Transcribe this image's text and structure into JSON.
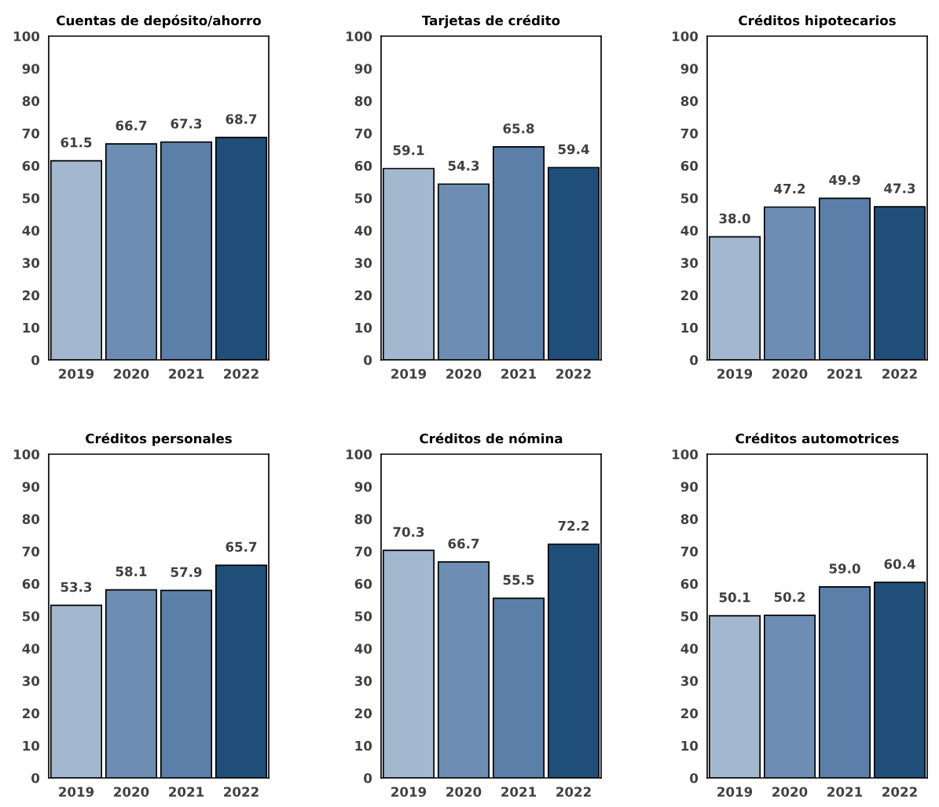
{
  "chart_data": [
    {
      "type": "bar",
      "title": "Cuentas de depósito/ahorro",
      "categories": [
        "2019",
        "2020",
        "2021",
        "2022"
      ],
      "values": [
        61.5,
        66.7,
        67.3,
        68.7
      ],
      "value_labels": [
        "61.5",
        "66.7",
        "67.3",
        "68.7"
      ],
      "colors": [
        "#a3b7cf",
        "#6d8db2",
        "#5b7fa8",
        "#1f4e79"
      ],
      "ylim": [
        0,
        100
      ],
      "yticks": [
        0,
        10,
        20,
        30,
        40,
        50,
        60,
        70,
        80,
        90,
        100
      ],
      "grid": false
    },
    {
      "type": "bar",
      "title": "Tarjetas de crédito",
      "categories": [
        "2019",
        "2020",
        "2021",
        "2022"
      ],
      "values": [
        59.1,
        54.3,
        65.8,
        59.4
      ],
      "value_labels": [
        "59.1",
        "54.3",
        "65.8",
        "59.4"
      ],
      "colors": [
        "#a3b7cf",
        "#6d8db2",
        "#5b7fa8",
        "#1f4e79"
      ],
      "ylim": [
        0,
        100
      ],
      "yticks": [
        0,
        10,
        20,
        30,
        40,
        50,
        60,
        70,
        80,
        90,
        100
      ],
      "grid": false
    },
    {
      "type": "bar",
      "title": "Créditos hipotecarios",
      "categories": [
        "2019",
        "2020",
        "2021",
        "2022"
      ],
      "values": [
        38.0,
        47.2,
        49.9,
        47.3
      ],
      "value_labels": [
        "38.0",
        "47.2",
        "49.9",
        "47.3"
      ],
      "colors": [
        "#a3b7cf",
        "#6d8db2",
        "#5b7fa8",
        "#1f4e79"
      ],
      "ylim": [
        0,
        100
      ],
      "yticks": [
        0,
        10,
        20,
        30,
        40,
        50,
        60,
        70,
        80,
        90,
        100
      ],
      "grid": false
    },
    {
      "type": "bar",
      "title": "Créditos personales",
      "categories": [
        "2019",
        "2020",
        "2021",
        "2022"
      ],
      "values": [
        53.3,
        58.1,
        57.9,
        65.7
      ],
      "value_labels": [
        "53.3",
        "58.1",
        "57.9",
        "65.7"
      ],
      "colors": [
        "#a3b7cf",
        "#6d8db2",
        "#5b7fa8",
        "#1f4e79"
      ],
      "ylim": [
        0,
        100
      ],
      "yticks": [
        0,
        10,
        20,
        30,
        40,
        50,
        60,
        70,
        80,
        90,
        100
      ],
      "grid": false
    },
    {
      "type": "bar",
      "title": "Créditos de nómina",
      "categories": [
        "2019",
        "2020",
        "2021",
        "2022"
      ],
      "values": [
        70.3,
        66.7,
        55.5,
        72.2
      ],
      "value_labels": [
        "70.3",
        "66.7",
        "55.5",
        "72.2"
      ],
      "colors": [
        "#a3b7cf",
        "#6d8db2",
        "#5b7fa8",
        "#1f4e79"
      ],
      "ylim": [
        0,
        100
      ],
      "yticks": [
        0,
        10,
        20,
        30,
        40,
        50,
        60,
        70,
        80,
        90,
        100
      ],
      "grid": false
    },
    {
      "type": "bar",
      "title": "Créditos automotrices",
      "categories": [
        "2019",
        "2020",
        "2021",
        "2022"
      ],
      "values": [
        50.1,
        50.2,
        59.0,
        60.4
      ],
      "value_labels": [
        "50.1",
        "50.2",
        "59.0",
        "60.4"
      ],
      "colors": [
        "#a3b7cf",
        "#6d8db2",
        "#5b7fa8",
        "#1f4e79"
      ],
      "ylim": [
        0,
        100
      ],
      "yticks": [
        0,
        10,
        20,
        30,
        40,
        50,
        60,
        70,
        80,
        90,
        100
      ],
      "grid": false
    }
  ]
}
